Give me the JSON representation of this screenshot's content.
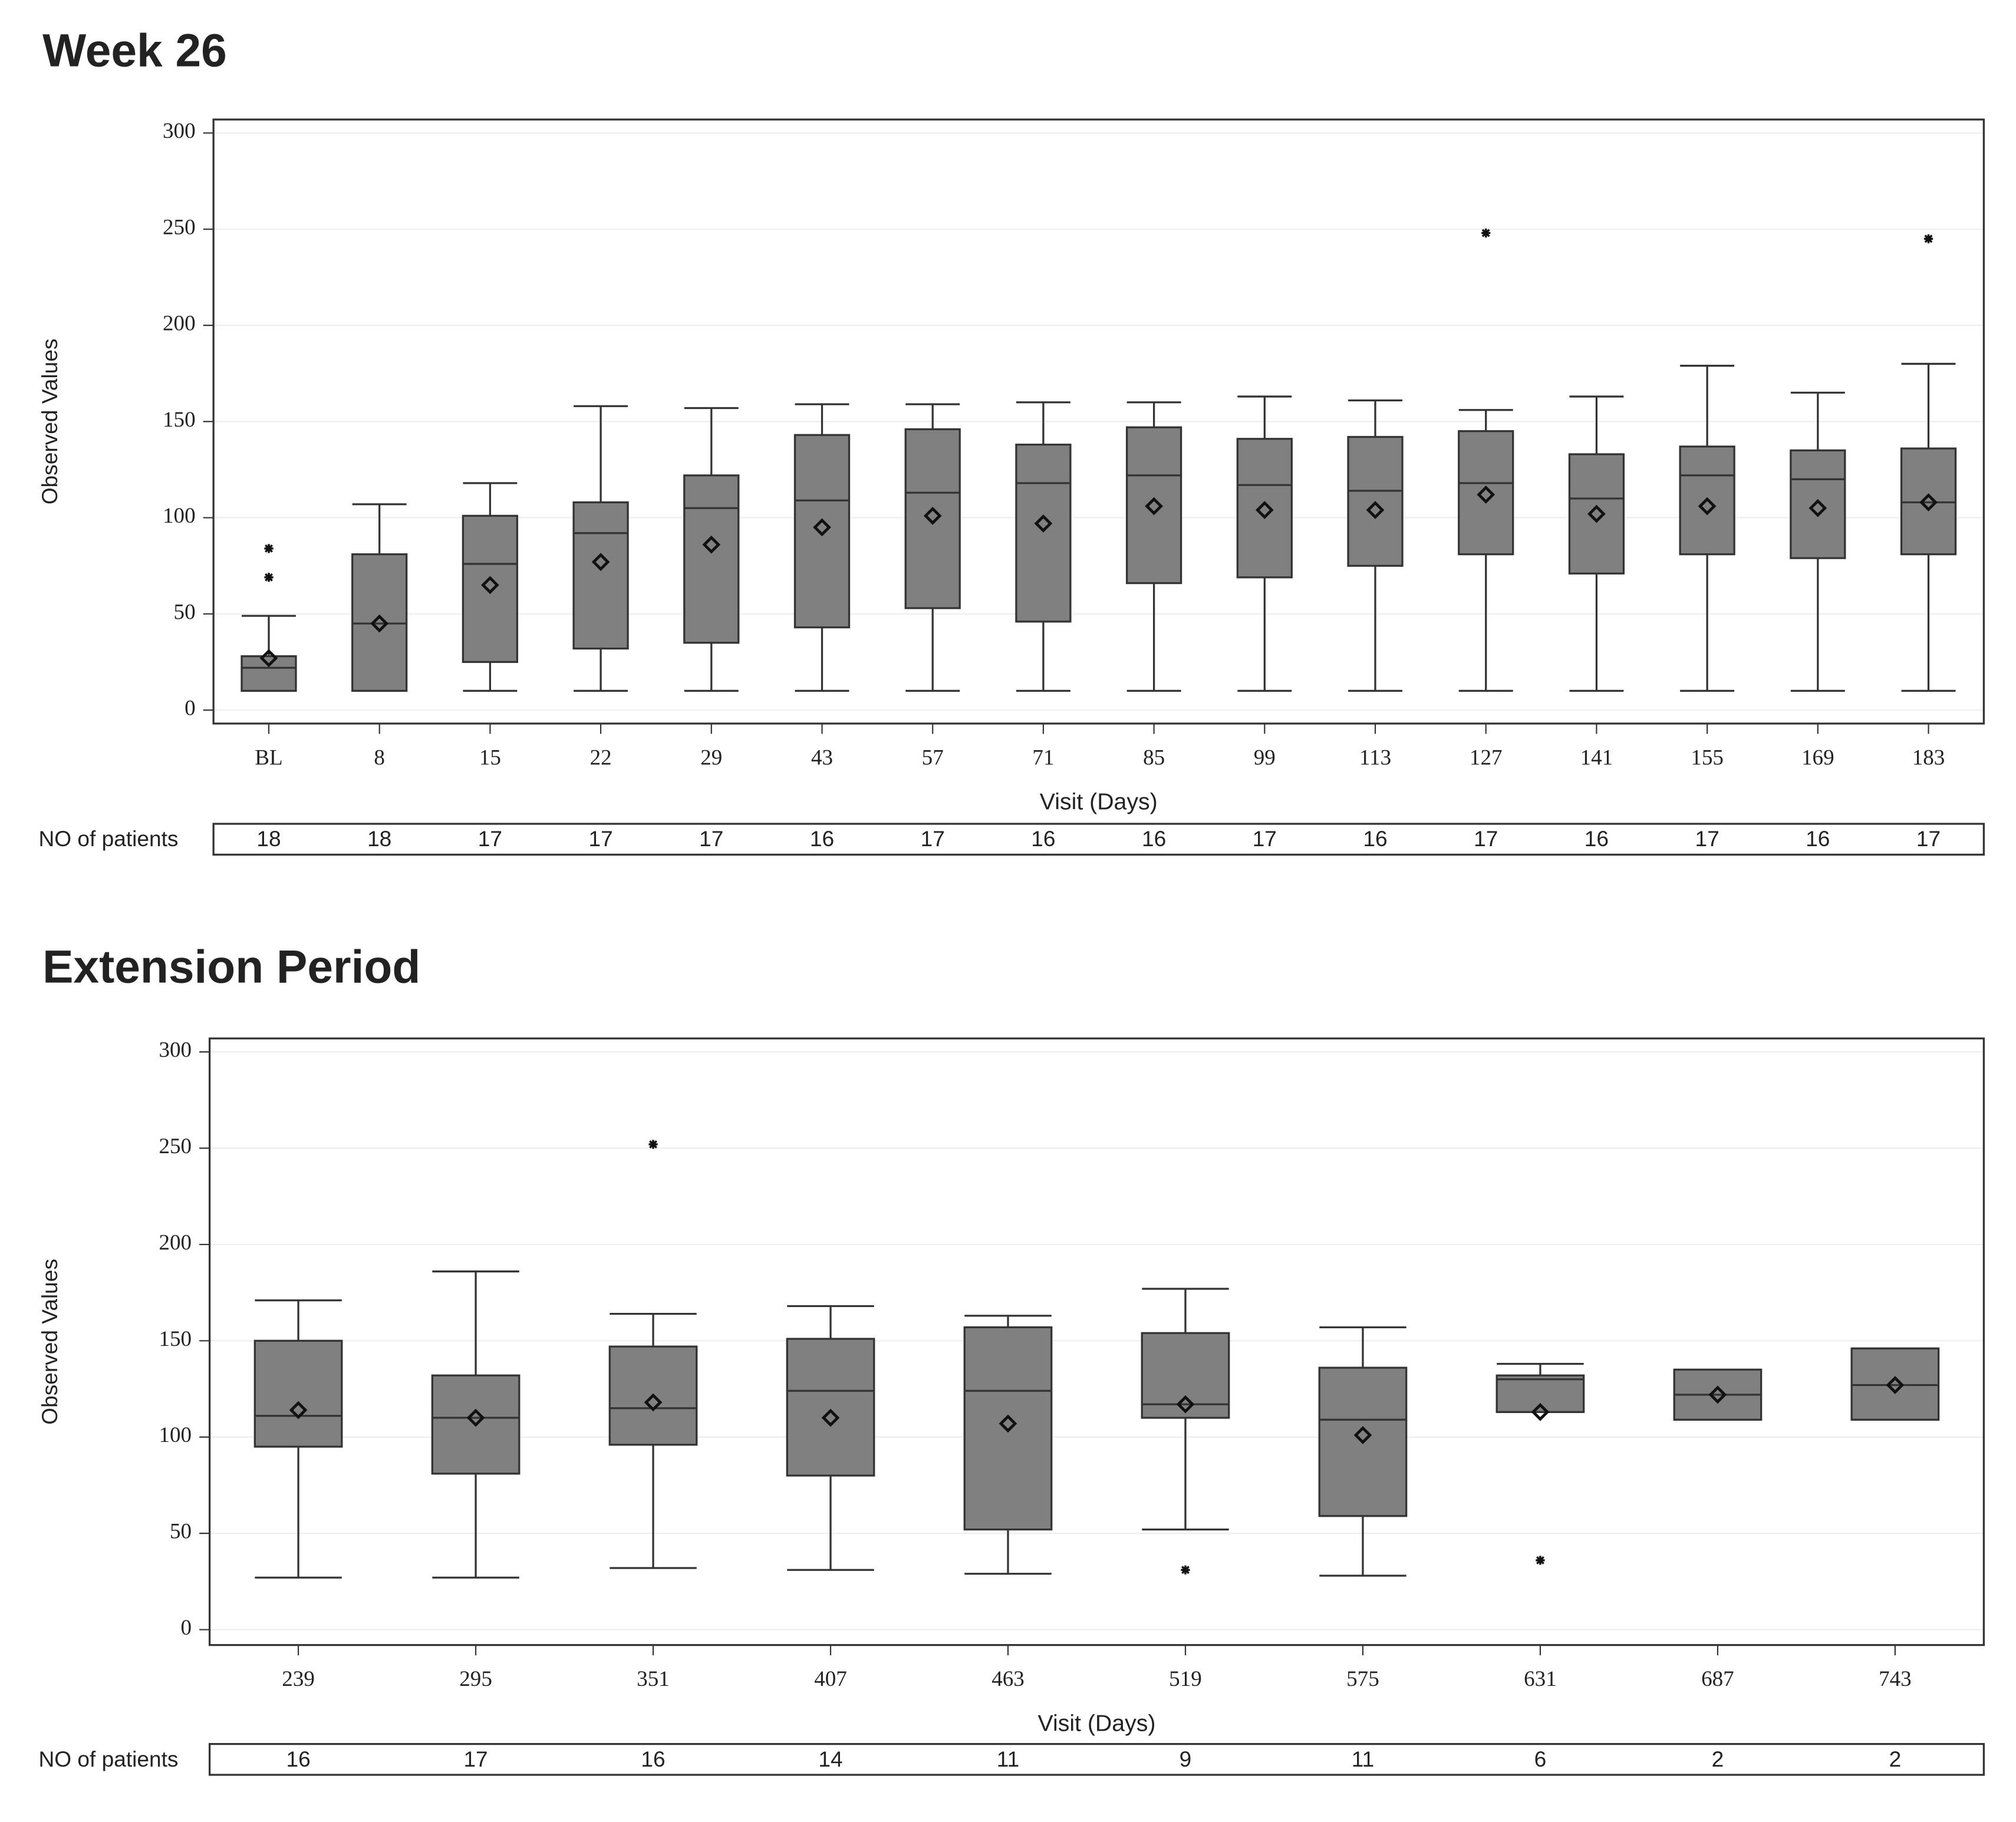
{
  "chart_data": [
    {
      "type": "box",
      "title": "Week 26",
      "ylabel": "Observed Values",
      "xlabel": "Visit (Days)",
      "color": "#808080",
      "categories": [
        "BL",
        "8",
        "15",
        "22",
        "29",
        "43",
        "57",
        "71",
        "85",
        "99",
        "113",
        "127",
        "141",
        "155",
        "169",
        "183"
      ],
      "boxes": [
        {
          "min": 10,
          "q1": 10,
          "median": 22,
          "q3": 28,
          "max": 49,
          "mean": 27,
          "outliers": [
            84,
            69
          ]
        },
        {
          "min": 10,
          "q1": 10,
          "median": 45,
          "q3": 81,
          "max": 107,
          "mean": 45
        },
        {
          "min": 10,
          "q1": 25,
          "median": 76,
          "q3": 101,
          "max": 118,
          "mean": 65
        },
        {
          "min": 10,
          "q1": 32,
          "median": 92,
          "q3": 108,
          "max": 158,
          "mean": 77
        },
        {
          "min": 10,
          "q1": 35,
          "median": 105,
          "q3": 122,
          "max": 157,
          "mean": 86
        },
        {
          "min": 10,
          "q1": 43,
          "median": 109,
          "q3": 143,
          "max": 159,
          "mean": 95
        },
        {
          "min": 10,
          "q1": 53,
          "median": 113,
          "q3": 146,
          "max": 159,
          "mean": 101
        },
        {
          "min": 10,
          "q1": 46,
          "median": 118,
          "q3": 138,
          "max": 160,
          "mean": 97
        },
        {
          "min": 10,
          "q1": 66,
          "median": 122,
          "q3": 147,
          "max": 160,
          "mean": 106
        },
        {
          "min": 10,
          "q1": 69,
          "median": 117,
          "q3": 141,
          "max": 163,
          "mean": 104
        },
        {
          "min": 10,
          "q1": 75,
          "median": 114,
          "q3": 142,
          "max": 161,
          "mean": 104
        },
        {
          "min": 10,
          "q1": 81,
          "median": 118,
          "q3": 145,
          "max": 156,
          "mean": 112,
          "outliers": [
            248
          ]
        },
        {
          "min": 10,
          "q1": 71,
          "median": 110,
          "q3": 133,
          "max": 163,
          "mean": 102
        },
        {
          "min": 10,
          "q1": 81,
          "median": 122,
          "q3": 137,
          "max": 179,
          "mean": 106
        },
        {
          "min": 10,
          "q1": 79,
          "median": 120,
          "q3": 135,
          "max": 165,
          "mean": 105
        },
        {
          "min": 10,
          "q1": 81,
          "median": 108,
          "q3": 136,
          "max": 180,
          "mean": 108,
          "outliers": [
            245
          ]
        }
      ],
      "ylim": [
        -7,
        307
      ],
      "yticks": [
        0,
        50,
        100,
        150,
        200,
        250,
        300
      ],
      "grid": true,
      "table": {
        "label": "NO of patients",
        "values": [
          18,
          18,
          17,
          17,
          17,
          16,
          17,
          16,
          16,
          17,
          16,
          17,
          16,
          17,
          16,
          17
        ]
      }
    },
    {
      "type": "box",
      "title": "Extension Period",
      "ylabel": "Observed Values",
      "xlabel": "Visit (Days)",
      "color": "#808080",
      "categories": [
        "239",
        "295",
        "351",
        "407",
        "463",
        "519",
        "575",
        "631",
        "687",
        "743"
      ],
      "boxes": [
        {
          "min": 27,
          "q1": 95,
          "median": 111,
          "q3": 150,
          "max": 171,
          "mean": 114
        },
        {
          "min": 27,
          "q1": 81,
          "median": 110,
          "q3": 132,
          "max": 186,
          "mean": 110
        },
        {
          "min": 32,
          "q1": 96,
          "median": 115,
          "q3": 147,
          "max": 164,
          "mean": 118,
          "outliers": [
            252
          ]
        },
        {
          "min": 31,
          "q1": 80,
          "median": 124,
          "q3": 151,
          "max": 168,
          "mean": 110
        },
        {
          "min": 29,
          "q1": 52,
          "median": 124,
          "q3": 157,
          "max": 163,
          "mean": 107
        },
        {
          "min": 52,
          "q1": 110,
          "median": 117,
          "q3": 154,
          "max": 177,
          "mean": 117,
          "outliers": [
            31
          ]
        },
        {
          "min": 28,
          "q1": 59,
          "median": 109,
          "q3": 136,
          "max": 157,
          "mean": 101
        },
        {
          "min": 113,
          "q1": 113,
          "median": 130,
          "q3": 132,
          "max": 138,
          "mean": 113,
          "outliers": [
            36
          ]
        },
        {
          "min": 109,
          "q1": 109,
          "median": 122,
          "q3": 135,
          "max": 135,
          "mean": 122
        },
        {
          "min": 109,
          "q1": 109,
          "median": 127,
          "q3": 146,
          "max": 146,
          "mean": 127
        }
      ],
      "ylim": [
        -8,
        307
      ],
      "yticks": [
        0,
        50,
        100,
        150,
        200,
        250,
        300
      ],
      "grid": true,
      "table": {
        "label": "NO of patients",
        "values": [
          16,
          17,
          16,
          14,
          11,
          9,
          11,
          6,
          2,
          2
        ]
      }
    }
  ]
}
